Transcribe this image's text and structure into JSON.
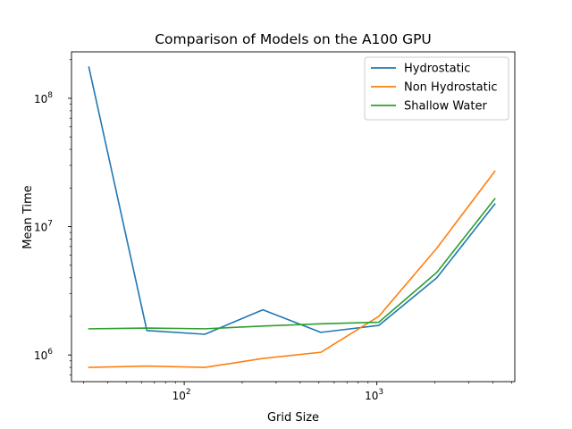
{
  "chart_data": {
    "type": "line",
    "title": "Comparison of Models on the A100 GPU",
    "xlabel": "Grid Size",
    "ylabel": "Mean Time",
    "xscale": "log",
    "yscale": "log",
    "xlim": [
      26,
      5200
    ],
    "ylim": [
      620000,
      230000000
    ],
    "x": [
      32,
      64,
      128,
      256,
      512,
      1024,
      2048,
      4096
    ],
    "x_major_ticks": [
      {
        "value": 100,
        "base": "10",
        "exp": "2"
      },
      {
        "value": 1000,
        "base": "10",
        "exp": "3"
      }
    ],
    "y_major_ticks": [
      {
        "value": 1000000,
        "base": "10",
        "exp": "6"
      },
      {
        "value": 10000000,
        "base": "10",
        "exp": "7"
      },
      {
        "value": 100000000,
        "base": "10",
        "exp": "8"
      }
    ],
    "series": [
      {
        "name": "Hydrostatic",
        "color": "#1f77b4",
        "values": [
          175000000,
          1550000,
          1450000,
          2250000,
          1500000,
          1700000,
          4000000,
          15000000
        ]
      },
      {
        "name": "Non Hydrostatic",
        "color": "#ff7f0e",
        "values": [
          800000,
          820000,
          800000,
          940000,
          1050000,
          2000000,
          6800000,
          27000000
        ]
      },
      {
        "name": "Shallow Water",
        "color": "#2ca02c",
        "values": [
          1600000,
          1620000,
          1600000,
          1680000,
          1750000,
          1800000,
          4400000,
          16500000
        ]
      }
    ],
    "legend": "top-right",
    "grid": false
  }
}
